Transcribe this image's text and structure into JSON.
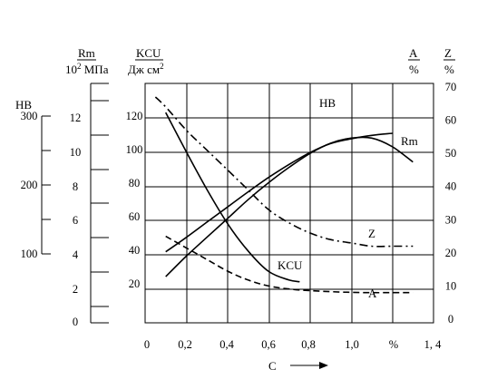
{
  "chart_data": {
    "type": "line",
    "title": "",
    "xlabel": "C",
    "x_ticks": [
      "0",
      "0,2",
      "0,4",
      "0,6",
      "0,8",
      "1,0",
      "%",
      "1, 4"
    ],
    "xlim": [
      0,
      1.4
    ],
    "grid": true,
    "axes": {
      "HB": {
        "label": "HB",
        "ticks": [
          "300",
          "200",
          "100"
        ],
        "range": [
          60,
          320
        ]
      },
      "Rm": {
        "label": "Rm",
        "unit": "10² МПа",
        "ticks": [
          "12",
          "10",
          "8",
          "6",
          "4",
          "2",
          "0"
        ],
        "range": [
          0,
          14
        ]
      },
      "KCU": {
        "label": "KCU",
        "unit": "Дж см²",
        "ticks": [
          "120",
          "100",
          "80",
          "60",
          "40",
          "20"
        ],
        "range": [
          0,
          140
        ]
      },
      "A": {
        "label": "A",
        "unit": "%"
      },
      "Z": {
        "label": "Z",
        "unit": "%",
        "ticks": [
          "70",
          "60",
          "50",
          "40",
          "30",
          "20",
          "10",
          "0"
        ],
        "range": [
          0,
          70
        ]
      }
    },
    "series": [
      {
        "name": "HB",
        "axis": "HB",
        "style": "solid",
        "x": [
          0.1,
          0.2,
          0.3,
          0.4,
          0.5,
          0.6,
          0.7,
          0.8,
          0.9,
          1.0,
          1.1,
          1.2
        ],
        "y": [
          103,
          124,
          146,
          168,
          190,
          211,
          230,
          247,
          260,
          267,
          272,
          275
        ]
      },
      {
        "name": "Rm",
        "axis": "Rm",
        "style": "solid",
        "x": [
          0.1,
          0.2,
          0.3,
          0.4,
          0.5,
          0.6,
          0.7,
          0.8,
          0.9,
          1.0,
          1.1,
          1.2,
          1.3
        ],
        "y": [
          2.7,
          3.9,
          5.0,
          6.1,
          7.2,
          8.2,
          9.1,
          9.9,
          10.5,
          10.8,
          10.8,
          10.3,
          9.4
        ]
      },
      {
        "name": "KCU",
        "axis": "KCU",
        "style": "solid",
        "x": [
          0.1,
          0.2,
          0.3,
          0.4,
          0.5,
          0.6,
          0.7,
          0.75
        ],
        "y": [
          123,
          100,
          78,
          58,
          42,
          30,
          25,
          24
        ]
      },
      {
        "name": "Z",
        "axis": "Z",
        "style": "dash-dot",
        "x": [
          0.05,
          0.1,
          0.2,
          0.3,
          0.4,
          0.5,
          0.6,
          0.7,
          0.8,
          0.9,
          1.0,
          1.1,
          1.2,
          1.3
        ],
        "y": [
          67,
          64,
          57,
          51,
          45,
          39,
          33,
          29,
          26,
          24,
          23,
          22,
          22,
          22
        ]
      },
      {
        "name": "A",
        "axis": "Z",
        "style": "dashed",
        "x": [
          0.1,
          0.2,
          0.3,
          0.4,
          0.5,
          0.6,
          0.7,
          0.8,
          0.9,
          1.0,
          1.1,
          1.2,
          1.3
        ],
        "y": [
          25,
          21.5,
          18,
          14.5,
          11.8,
          10,
          9.1,
          8.6,
          8.3,
          8.1,
          8.0,
          8.0,
          8.0
        ]
      }
    ]
  }
}
